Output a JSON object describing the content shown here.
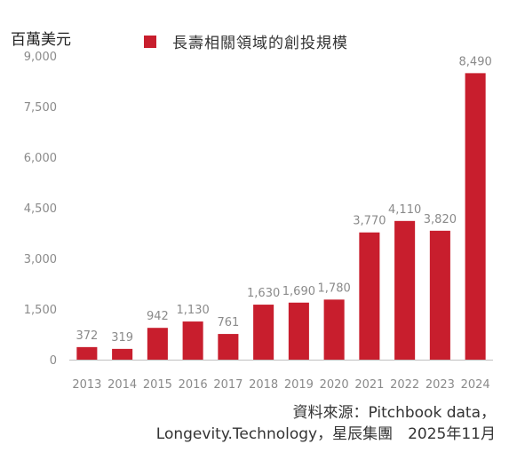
{
  "unit_label": "百萬美元",
  "colors": {
    "bar": "#c81e2d",
    "axis": "#bfbfbf",
    "text": "#8a8a8a"
  },
  "source": {
    "line1": "資料來源：Pitchbook data，",
    "line2": "Longevity.Technology，星辰集團　2025年11月"
  },
  "chart_data": {
    "type": "bar",
    "categories": [
      "2013",
      "2014",
      "2015",
      "2016",
      "2017",
      "2018",
      "2019",
      "2020",
      "2021",
      "2022",
      "2023",
      "2024"
    ],
    "series": [
      {
        "name": "長壽相關領域的創投規模",
        "values": [
          372,
          319,
          942,
          1130,
          761,
          1630,
          1690,
          1780,
          3770,
          4110,
          3820,
          8490
        ]
      }
    ],
    "data_labels": [
      "372",
      "319",
      "942",
      "1,130",
      "761",
      "1,630",
      "1,690",
      "1,780",
      "3,770",
      "4,110",
      "3,820",
      "8,490"
    ],
    "ylim": [
      0,
      9000
    ],
    "yticks": [
      0,
      1500,
      3000,
      4500,
      6000,
      7500,
      9000
    ],
    "ytick_labels": [
      "0",
      "1,500",
      "3,000",
      "4,500",
      "6,000",
      "7,500",
      "9,000"
    ],
    "grid": false,
    "legend_position": "top"
  }
}
